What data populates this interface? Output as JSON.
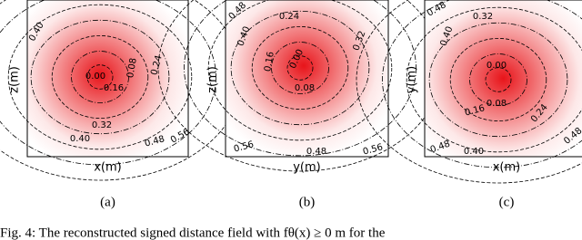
{
  "panels": [
    {
      "y_label": "z(m)",
      "x_label": "x(m)",
      "subcaption": "(a)",
      "contour_labels": [
        "0.40",
        "0.00",
        "0.08",
        "0.24",
        "0.16",
        "0.32",
        "0.40",
        "0.48",
        "0.56"
      ]
    },
    {
      "y_label": "z(m)",
      "x_label": "y(m)",
      "subcaption": "(b)",
      "contour_labels": [
        "0.48",
        "0.24",
        "0.40",
        "0.32",
        "0.16",
        "0.00",
        "0.08",
        "0.56",
        "0.48",
        "0.56"
      ]
    },
    {
      "y_label": "y(m)",
      "x_label": "x(m)",
      "subcaption": "(c)",
      "contour_labels": [
        "0.48",
        "0.32",
        "0.40",
        "0.00",
        "0.08",
        "0.16",
        "0.24",
        "0.48",
        "0.40",
        "0.48"
      ]
    }
  ],
  "caption": "Fig. 4:  The reconstructed signed distance field with fθ(x) ≥ 0 m for the"
}
